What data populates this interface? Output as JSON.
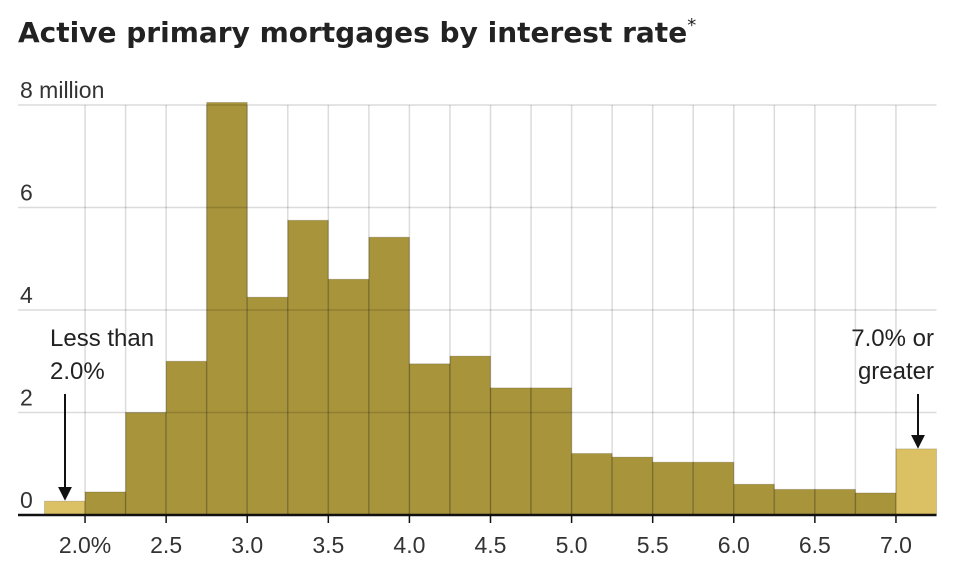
{
  "chart_data": {
    "type": "histogram",
    "title": "Active primary mortgages by interest rate",
    "title_note": "*",
    "bins": [
      1.75,
      2.0,
      2.25,
      2.5,
      2.75,
      3.0,
      3.25,
      3.5,
      3.75,
      4.0,
      4.25,
      4.5,
      4.75,
      5.0,
      5.25,
      5.5,
      5.75,
      6.0,
      6.25,
      6.5,
      6.75,
      7.0,
      7.25
    ],
    "values": [
      0.27,
      0.45,
      2.0,
      3.0,
      8.05,
      4.25,
      5.75,
      4.6,
      5.42,
      2.95,
      3.1,
      2.48,
      2.48,
      1.2,
      1.13,
      1.03,
      1.03,
      0.6,
      0.5,
      0.5,
      0.43,
      1.29
    ],
    "colors": [
      "#dcc164",
      "#a8943a",
      "#a8943a",
      "#a8943a",
      "#a8943a",
      "#a8943a",
      "#a8943a",
      "#a8943a",
      "#a8943a",
      "#a8943a",
      "#a8943a",
      "#a8943a",
      "#a8943a",
      "#a8943a",
      "#a8943a",
      "#a8943a",
      "#a8943a",
      "#a8943a",
      "#a8943a",
      "#a8943a",
      "#a8943a",
      "#dcc164"
    ],
    "xlim": [
      1.75,
      7.25
    ],
    "ylim": [
      0,
      8
    ],
    "xticks": [
      {
        "value": 2.0,
        "label": "2.0%"
      },
      {
        "value": 2.5,
        "label": "2.5"
      },
      {
        "value": 3.0,
        "label": "3.0"
      },
      {
        "value": 3.5,
        "label": "3.5"
      },
      {
        "value": 4.0,
        "label": "4.0"
      },
      {
        "value": 4.5,
        "label": "4.5"
      },
      {
        "value": 5.0,
        "label": "5.0"
      },
      {
        "value": 5.5,
        "label": "5.5"
      },
      {
        "value": 6.0,
        "label": "6.0"
      },
      {
        "value": 6.5,
        "label": "6.5"
      },
      {
        "value": 7.0,
        "label": "7.0"
      }
    ],
    "yticks": [
      {
        "value": 8,
        "label": "8 million"
      },
      6,
      4,
      2,
      0
    ],
    "grid": true,
    "annotations": [
      [
        "Less than",
        "2.0%"
      ],
      [
        "7.0% or",
        "greater"
      ]
    ]
  }
}
